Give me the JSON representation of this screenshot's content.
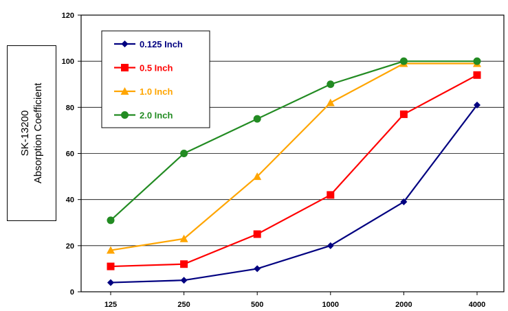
{
  "chart_data": {
    "type": "line",
    "title": "",
    "xlabel": "",
    "ylabel_lines": [
      "SK-13200",
      "Absorption Coefficient"
    ],
    "categories": [
      "125",
      "250",
      "500",
      "1000",
      "2000",
      "4000"
    ],
    "ylim": [
      0,
      120
    ],
    "yticks": [
      0,
      20,
      40,
      60,
      80,
      100,
      120
    ],
    "grid": "horizontal",
    "legend_position": "top-left",
    "series": [
      {
        "name": "0.125 Inch",
        "color": "#000080",
        "marker": "diamond",
        "values": [
          4,
          5,
          10,
          20,
          39,
          81
        ]
      },
      {
        "name": "0.5 Inch",
        "color": "#ff0000",
        "marker": "square",
        "values": [
          11,
          12,
          25,
          42,
          77,
          94
        ]
      },
      {
        "name": "1.0 Inch",
        "color": "#ffa500",
        "marker": "triangle",
        "values": [
          18,
          23,
          50,
          82,
          99,
          99
        ]
      },
      {
        "name": "2.0 Inch",
        "color": "#228b22",
        "marker": "circle",
        "values": [
          31,
          60,
          75,
          90,
          100,
          100
        ]
      }
    ]
  }
}
